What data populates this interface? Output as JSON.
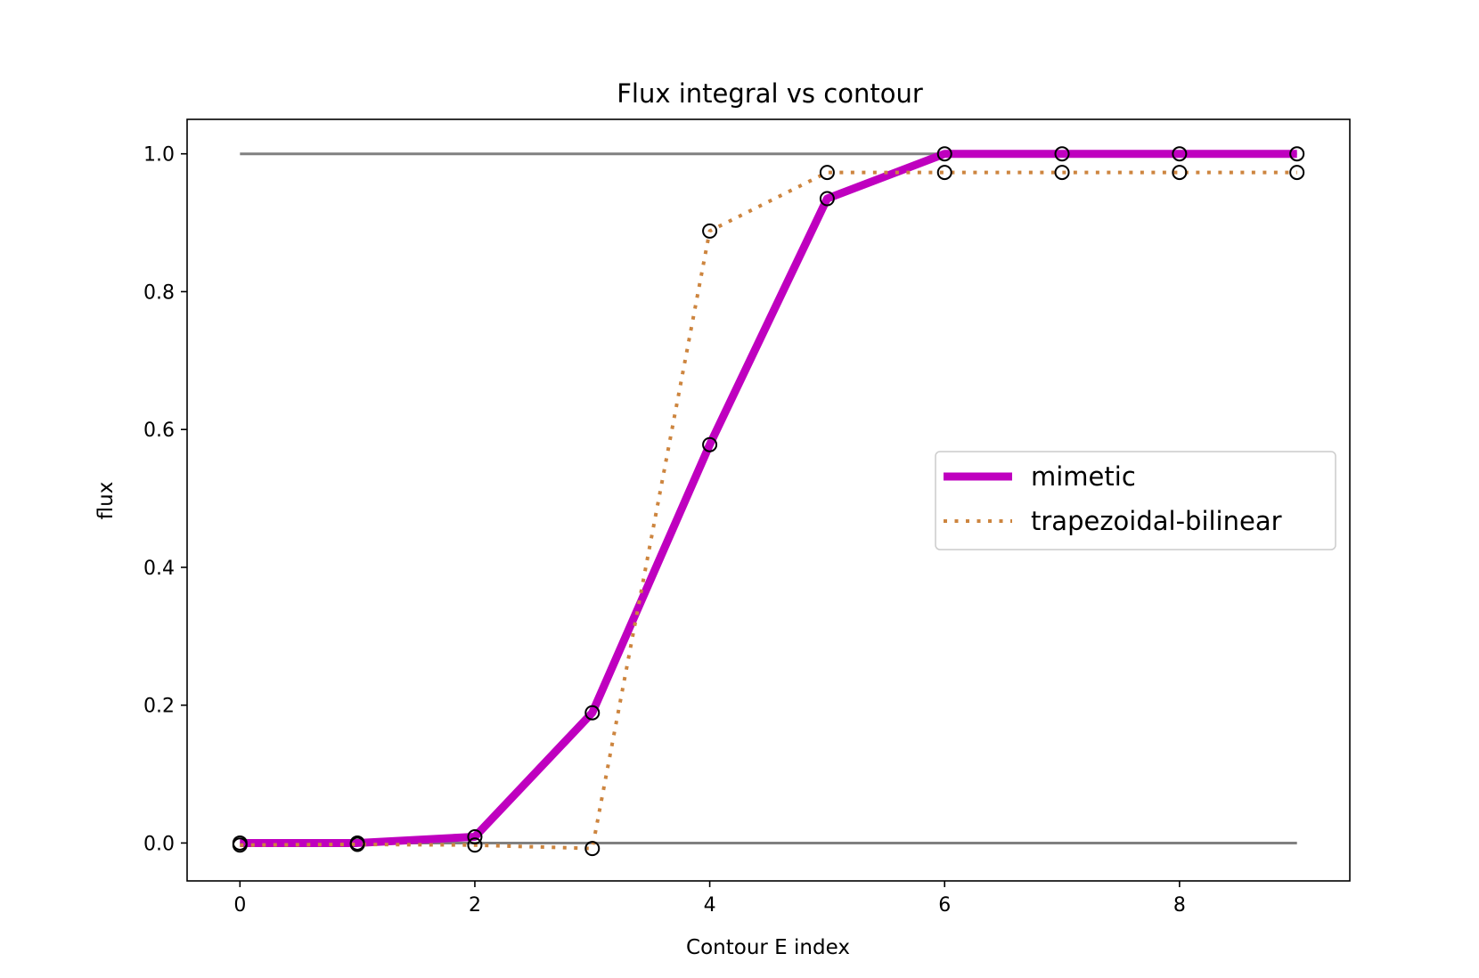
{
  "chart_data": {
    "type": "line",
    "title": "Flux integral vs contour",
    "xlabel": "Contour E index",
    "ylabel": "flux",
    "xlim": [
      -0.45,
      9.45
    ],
    "ylim": [
      -0.055,
      1.05
    ],
    "xticks": [
      0,
      2,
      4,
      6,
      8
    ],
    "xtick_labels": [
      "0",
      "2",
      "4",
      "6",
      "8"
    ],
    "yticks": [
      0.0,
      0.2,
      0.4,
      0.6,
      0.8,
      1.0
    ],
    "ytick_labels": [
      "0.0",
      "0.2",
      "0.4",
      "0.6",
      "0.8",
      "1.0"
    ],
    "grid": false,
    "legend_position": "center-right",
    "x": [
      0,
      1,
      2,
      3,
      4,
      5,
      6,
      7,
      8,
      9
    ],
    "reference_lines": [
      {
        "y": 1.0,
        "x_range": [
          0,
          9
        ],
        "color": "#808080"
      },
      {
        "y": 0.0,
        "x_range": [
          0,
          9
        ],
        "color": "#808080"
      }
    ],
    "series": [
      {
        "name": "mimetic",
        "color": "#bf00bf",
        "style": "solid",
        "values": [
          0.0,
          0.0,
          0.009,
          0.189,
          0.578,
          0.935,
          1.0,
          1.0,
          1.0,
          1.0
        ]
      },
      {
        "name": "trapezoidal-bilinear",
        "color": "#cd853f",
        "style": "dotted",
        "values": [
          -0.003,
          -0.002,
          -0.003,
          -0.008,
          0.888,
          0.973,
          0.973,
          0.973,
          0.973,
          0.973
        ]
      }
    ],
    "marker_style": "open-circle-black"
  }
}
